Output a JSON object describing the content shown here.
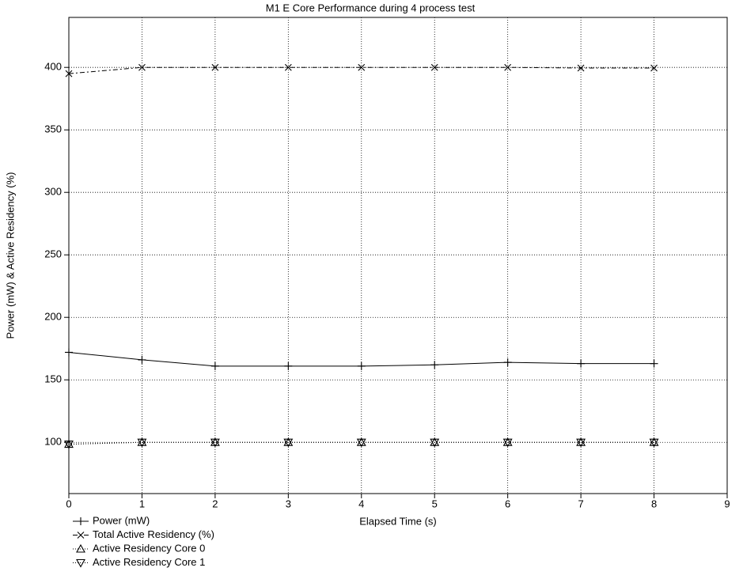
{
  "chart_data": {
    "type": "line",
    "title": "M1 E Core Performance during 4 process test",
    "x_label": "Elapsed Time (s)",
    "y_label": "Power (mW) & Active Residency (%)",
    "x": [
      0,
      1,
      2,
      3,
      4,
      5,
      6,
      7,
      8
    ],
    "series": [
      {
        "name": "Power (mW)",
        "color": "#000000",
        "marker": "plus",
        "line_style": "solid",
        "values": [
          172,
          166,
          161,
          161,
          161,
          162,
          164,
          163,
          163
        ]
      },
      {
        "name": "Total Active Residency (%)",
        "color": "#000000",
        "marker": "cross",
        "line_style": "dashed",
        "values": [
          395,
          400,
          400,
          400,
          400,
          400,
          400,
          399.5,
          399.5
        ]
      },
      {
        "name": "Active Residency Core 0",
        "color": "#000000",
        "marker": "triangle-up",
        "line_style": "dotted",
        "values": [
          98.5,
          100,
          100,
          100,
          100,
          100,
          100,
          100,
          100
        ]
      },
      {
        "name": "Active Residency Core 1",
        "color": "#000000",
        "marker": "triangle-down",
        "line_style": "dotted",
        "values": [
          98.5,
          100,
          100,
          100,
          100,
          100,
          100,
          100,
          100
        ]
      }
    ],
    "xlim": [
      0,
      9
    ],
    "xticks": [
      0,
      1,
      2,
      3,
      4,
      5,
      6,
      7,
      8,
      9
    ],
    "ylim": [
      59,
      440
    ],
    "yticks": [
      100,
      150,
      200,
      250,
      300,
      350,
      400
    ],
    "grid": true,
    "legend_position": "bottom-left"
  }
}
